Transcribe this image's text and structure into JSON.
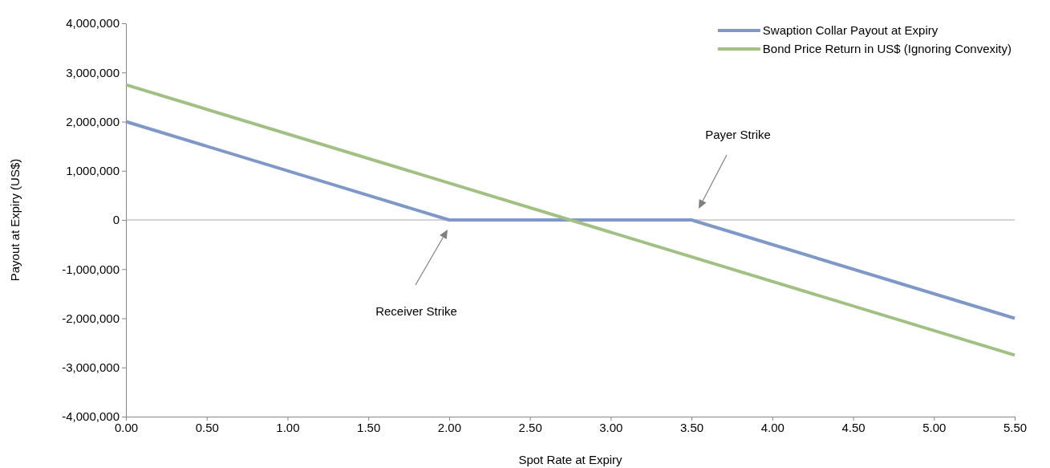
{
  "chart_data": {
    "type": "line",
    "xlabel": "Spot Rate at Expiry",
    "ylabel": "Payout at Expiry (US$)",
    "xlim": [
      0,
      5.5
    ],
    "xticks": [
      {
        "value": 0,
        "label": "0.00"
      },
      {
        "value": 0.5,
        "label": "0.50"
      },
      {
        "value": 1,
        "label": "1.00"
      },
      {
        "value": 1.5,
        "label": "1.50"
      },
      {
        "value": 2,
        "label": "2.00"
      },
      {
        "value": 2.5,
        "label": "2.50"
      },
      {
        "value": 3,
        "label": "3.00"
      },
      {
        "value": 3.5,
        "label": "3.50"
      },
      {
        "value": 4,
        "label": "4.00"
      },
      {
        "value": 4.5,
        "label": "4.50"
      },
      {
        "value": 5,
        "label": "5.00"
      },
      {
        "value": 5.5,
        "label": "5.50"
      }
    ],
    "ylim": [
      -4000000,
      4000000
    ],
    "yticks": [
      {
        "value": -4000000,
        "label": "-4,000,000"
      },
      {
        "value": -3000000,
        "label": "-3,000,000"
      },
      {
        "value": -2000000,
        "label": "-2,000,000"
      },
      {
        "value": -1000000,
        "label": "-1,000,000"
      },
      {
        "value": 0,
        "label": "0"
      },
      {
        "value": 1000000,
        "label": "1,000,000"
      },
      {
        "value": 2000000,
        "label": "2,000,000"
      },
      {
        "value": 3000000,
        "label": "3,000,000"
      },
      {
        "value": 4000000,
        "label": "4,000,000"
      }
    ],
    "series": [
      {
        "name": "Swaption Collar Payout at Expiry",
        "color": "#7f98c8",
        "x": [
          0,
          2,
          3.5,
          5.5
        ],
        "values": [
          2000000,
          0,
          0,
          -2000000
        ]
      },
      {
        "name": "Bond Price Return in US$ (Ignoring Convexity)",
        "color": "#a3c084",
        "x": [
          0,
          5.5
        ],
        "values": [
          2750000,
          -2750000
        ]
      }
    ],
    "ref_lines": [
      {
        "axis": "y",
        "value": 0,
        "color": "#a6a6a6"
      }
    ],
    "annotations": [
      "Receiver Strike",
      "Payer Strike"
    ],
    "legend": "top right",
    "grid": false,
    "marker": "none",
    "line_style": "solid"
  }
}
